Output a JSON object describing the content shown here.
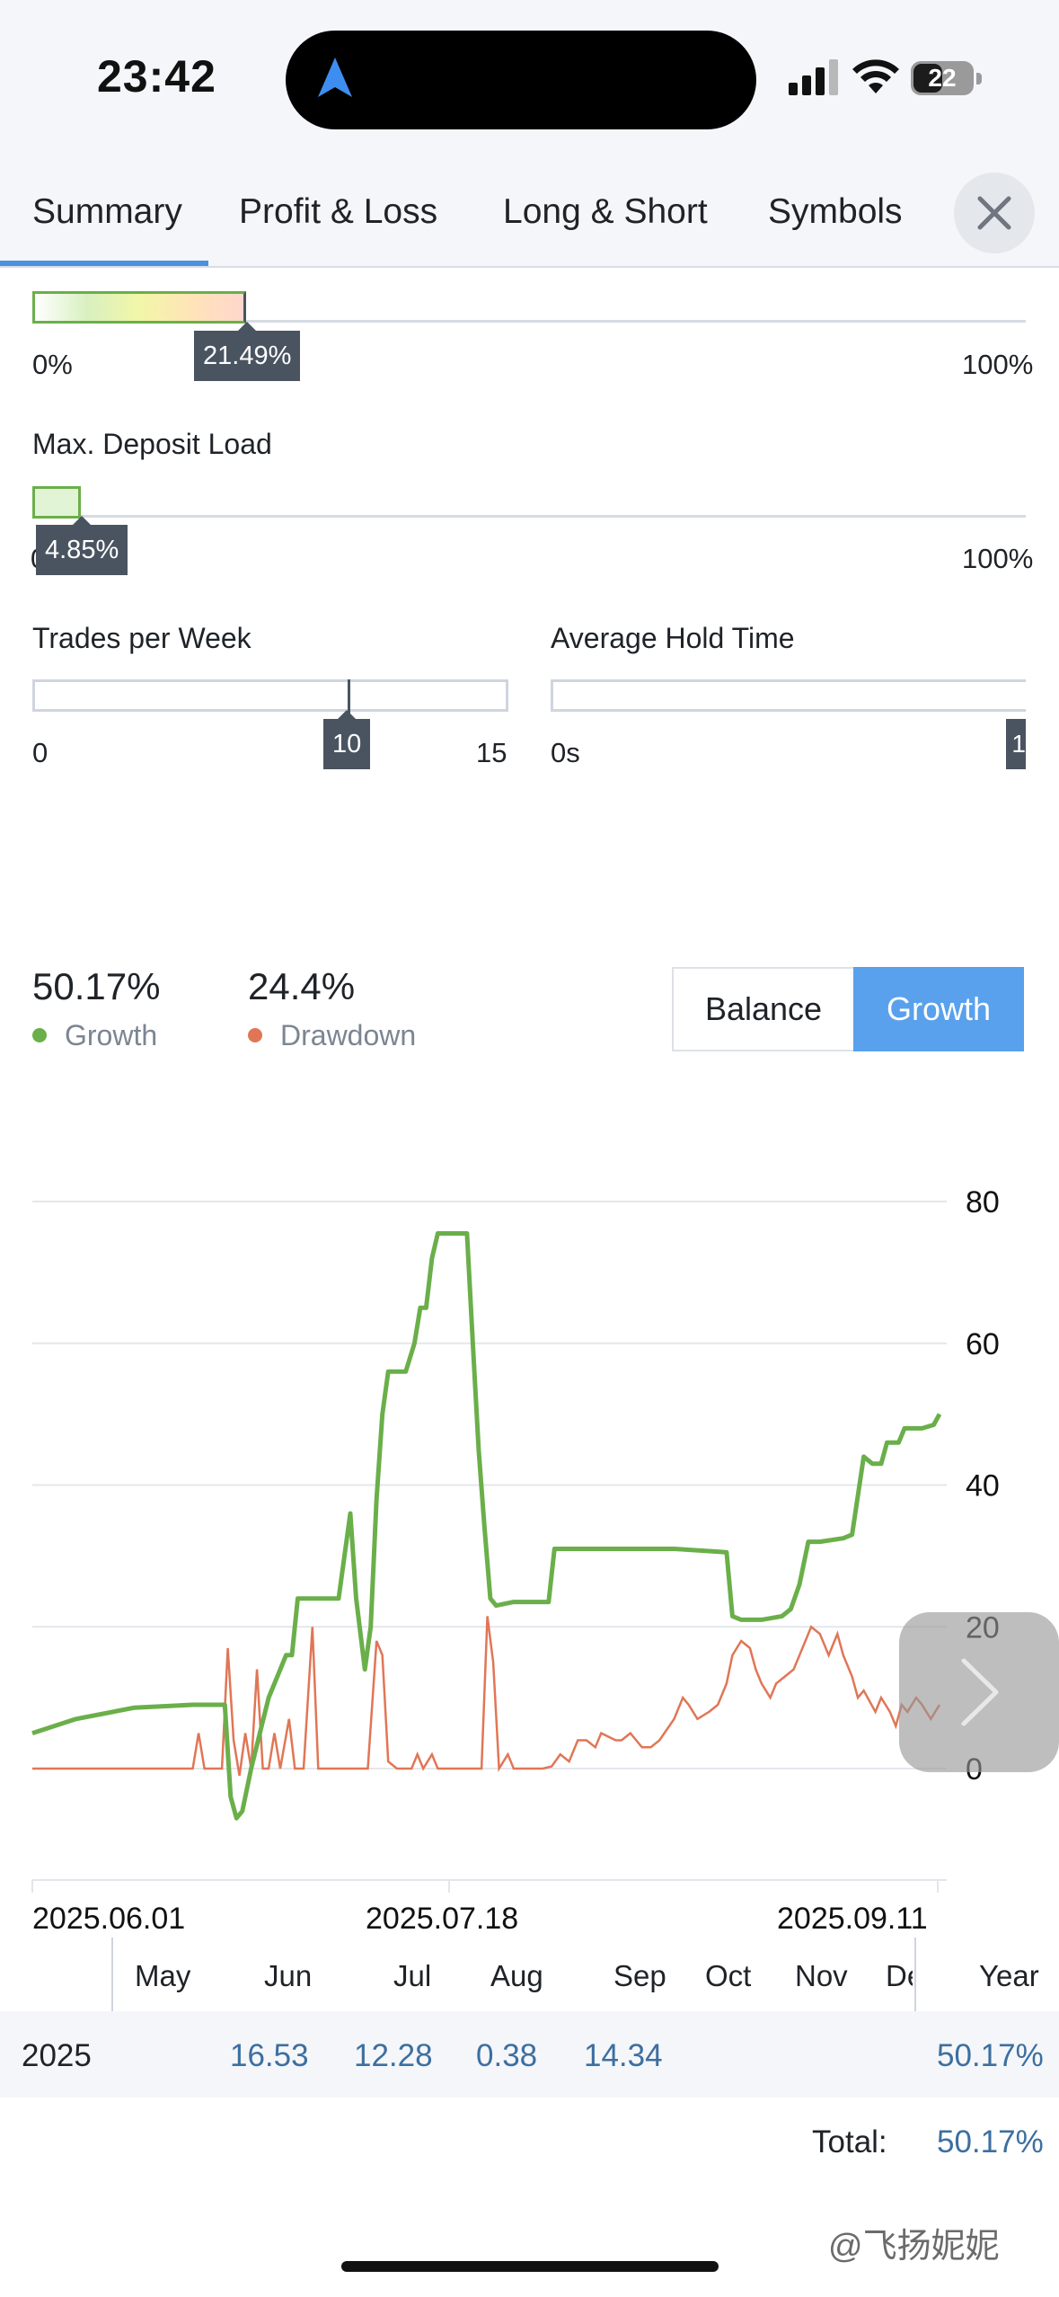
{
  "status_bar": {
    "time": "23:42",
    "battery": "22"
  },
  "tabs": [
    {
      "label": "Summary",
      "active": true
    },
    {
      "label": "Profit & Loss"
    },
    {
      "label": "Long & Short"
    },
    {
      "label": "Symbols"
    }
  ],
  "sliders": {
    "top": {
      "value_label": "21.49%",
      "value": 21.49,
      "min_label": "0%",
      "max_label": "100%"
    },
    "deposit_load": {
      "title": "Max. Deposit Load",
      "value_label": "4.85%",
      "value": 4.85,
      "min_label": "0",
      "max_label": "100%"
    },
    "trades_per_week": {
      "title": "Trades per Week",
      "value_label": "10",
      "value": 10,
      "min_label": "0",
      "max_label": "15"
    },
    "hold_time": {
      "title": "Average Hold Time",
      "min_label": "0s",
      "max_label": "1",
      "value_label": "1"
    }
  },
  "stats": {
    "growth_value": "50.17%",
    "growth_label": "Growth",
    "drawdown_value": "24.4%",
    "drawdown_label": "Drawdown"
  },
  "toggle": {
    "balance_label": "Balance",
    "growth_label": "Growth",
    "selected": "Growth"
  },
  "colors": {
    "growth": "#6aaf4a",
    "drawdown": "#e07656",
    "accent": "#59a1ec"
  },
  "chart_data": {
    "type": "line",
    "y_ticks": [
      "80",
      "60",
      "40",
      "20",
      "0"
    ],
    "ylim": [
      -8,
      82
    ],
    "x_labels": [
      "2025.06.01",
      "2025.07.18",
      "2025.09.11"
    ],
    "series": [
      {
        "name": "Growth",
        "color": "#6aaf4a",
        "points": [
          [
            0,
            5
          ],
          [
            30,
            7
          ],
          [
            70,
            8.6
          ],
          [
            110,
            9
          ],
          [
            132,
            9
          ],
          [
            136,
            -4
          ],
          [
            140,
            -7
          ],
          [
            144,
            -6
          ],
          [
            150,
            0
          ],
          [
            156,
            5
          ],
          [
            162,
            10
          ],
          [
            168,
            13
          ],
          [
            174,
            16
          ],
          [
            178,
            16
          ],
          [
            182,
            24
          ],
          [
            192,
            24
          ],
          [
            210,
            24
          ],
          [
            214,
            30
          ],
          [
            218,
            36
          ],
          [
            222,
            24
          ],
          [
            228,
            14
          ],
          [
            232,
            20
          ],
          [
            236,
            38
          ],
          [
            240,
            50
          ],
          [
            244,
            56
          ],
          [
            250,
            56
          ],
          [
            256,
            56
          ],
          [
            262,
            60
          ],
          [
            266,
            65
          ],
          [
            270,
            65
          ],
          [
            274,
            72
          ],
          [
            278,
            75.5
          ],
          [
            298,
            75.5
          ],
          [
            302,
            60
          ],
          [
            306,
            45
          ],
          [
            310,
            34
          ],
          [
            314,
            24
          ],
          [
            318,
            23
          ],
          [
            330,
            23.5
          ],
          [
            354,
            23.5
          ],
          [
            358,
            31
          ],
          [
            400,
            31
          ],
          [
            440,
            31
          ],
          [
            470,
            30.6
          ],
          [
            476,
            30.5
          ],
          [
            480,
            21.5
          ],
          [
            486,
            21
          ],
          [
            500,
            21
          ],
          [
            514,
            21.5
          ],
          [
            520,
            22.5
          ],
          [
            526,
            26
          ],
          [
            532,
            32
          ],
          [
            540,
            32
          ],
          [
            556,
            32.5
          ],
          [
            562,
            33
          ],
          [
            570,
            44
          ],
          [
            576,
            43
          ],
          [
            582,
            43
          ],
          [
            586,
            46
          ],
          [
            594,
            46
          ],
          [
            598,
            48
          ],
          [
            610,
            48
          ],
          [
            618,
            48.5
          ],
          [
            622,
            50
          ]
        ]
      },
      {
        "name": "Drawdown",
        "color": "#e07656",
        "points": [
          [
            0,
            0
          ],
          [
            100,
            0
          ],
          [
            110,
            0
          ],
          [
            114,
            5
          ],
          [
            118,
            0
          ],
          [
            130,
            0
          ],
          [
            134,
            17
          ],
          [
            138,
            4
          ],
          [
            142,
            -1
          ],
          [
            146,
            5
          ],
          [
            150,
            0
          ],
          [
            154,
            14
          ],
          [
            158,
            0
          ],
          [
            162,
            0
          ],
          [
            166,
            5
          ],
          [
            170,
            0
          ],
          [
            176,
            7
          ],
          [
            180,
            0
          ],
          [
            186,
            0
          ],
          [
            192,
            20
          ],
          [
            196,
            0
          ],
          [
            210,
            0
          ],
          [
            230,
            0
          ],
          [
            236,
            18
          ],
          [
            240,
            16
          ],
          [
            244,
            1
          ],
          [
            250,
            0
          ],
          [
            260,
            0
          ],
          [
            264,
            2
          ],
          [
            268,
            0
          ],
          [
            274,
            2
          ],
          [
            278,
            0
          ],
          [
            290,
            0
          ],
          [
            308,
            0
          ],
          [
            312,
            21.5
          ],
          [
            316,
            15
          ],
          [
            320,
            0
          ],
          [
            326,
            2
          ],
          [
            330,
            0
          ],
          [
            340,
            0
          ],
          [
            346,
            0
          ],
          [
            350,
            0
          ],
          [
            356,
            0.3
          ],
          [
            362,
            2
          ],
          [
            368,
            1
          ],
          [
            374,
            4
          ],
          [
            380,
            4
          ],
          [
            386,
            3
          ],
          [
            390,
            5
          ],
          [
            400,
            4
          ],
          [
            404,
            4
          ],
          [
            410,
            5
          ],
          [
            418,
            3
          ],
          [
            424,
            3
          ],
          [
            430,
            4
          ],
          [
            440,
            7
          ],
          [
            446,
            10
          ],
          [
            450,
            9
          ],
          [
            456,
            7
          ],
          [
            464,
            8
          ],
          [
            470,
            9
          ],
          [
            476,
            12
          ],
          [
            480,
            16
          ],
          [
            486,
            18
          ],
          [
            492,
            17
          ],
          [
            496,
            14
          ],
          [
            500,
            12
          ],
          [
            506,
            10
          ],
          [
            510,
            12
          ],
          [
            516,
            13
          ],
          [
            522,
            14
          ],
          [
            528,
            17
          ],
          [
            534,
            20
          ],
          [
            540,
            19
          ],
          [
            546,
            16
          ],
          [
            552,
            19
          ],
          [
            556,
            16
          ],
          [
            562,
            13
          ],
          [
            566,
            10
          ],
          [
            570,
            11
          ],
          [
            578,
            8
          ],
          [
            582,
            10
          ],
          [
            588,
            8
          ],
          [
            592,
            6
          ],
          [
            596,
            9
          ],
          [
            600,
            8
          ],
          [
            606,
            10
          ],
          [
            610,
            9
          ],
          [
            616,
            7
          ],
          [
            622,
            9
          ]
        ]
      }
    ]
  },
  "table": {
    "months": [
      "May",
      "Jun",
      "Jul",
      "Aug",
      "Sep",
      "Oct",
      "Nov",
      "De"
    ],
    "year_header": "Year",
    "row_year": "2025",
    "values": [
      "",
      "16.53",
      "12.28",
      "0.38",
      "14.34",
      "",
      "",
      ""
    ],
    "year_value": "50.17%",
    "total_label": "Total:",
    "total_value": "50.17%"
  },
  "watermark": "@飞扬妮妮"
}
